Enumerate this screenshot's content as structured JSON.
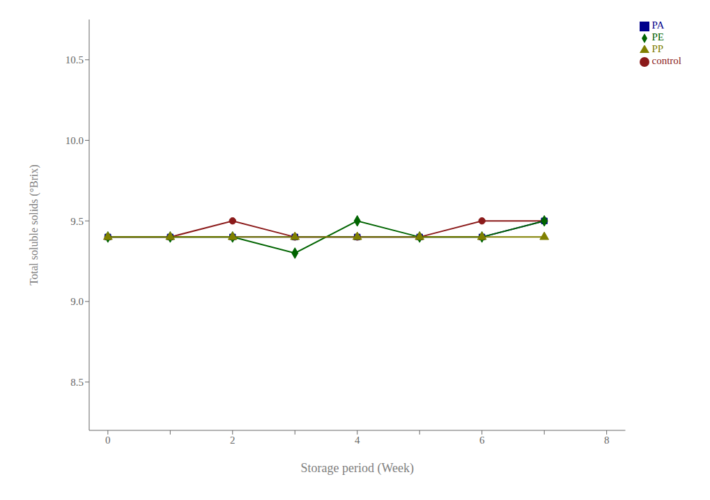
{
  "chart_data": {
    "type": "line",
    "xlabel": "Storage period (Week)",
    "ylabel": "Total soluble solids (°Brix)",
    "x": [
      0,
      1,
      2,
      3,
      4,
      5,
      6,
      7
    ],
    "series": [
      {
        "name": "control",
        "color": "#8B1A1A",
        "marker": "circle",
        "values": [
          9.4,
          9.4,
          9.5,
          9.4,
          9.4,
          9.4,
          9.5,
          9.5
        ]
      },
      {
        "name": "PA",
        "color": "#00008B",
        "marker": "square",
        "values": [
          9.4,
          9.4,
          9.4,
          9.4,
          9.4,
          9.4,
          9.4,
          9.5
        ]
      },
      {
        "name": "PE",
        "color": "#006400",
        "marker": "diamond",
        "values": [
          9.4,
          9.4,
          9.4,
          9.3,
          9.5,
          9.4,
          9.4,
          9.5
        ]
      },
      {
        "name": "PP",
        "color": "#808000",
        "marker": "triangle",
        "values": [
          9.4,
          9.4,
          9.4,
          9.4,
          9.4,
          9.4,
          9.4,
          9.4
        ]
      }
    ],
    "xlim": [
      -0.3,
      8.3
    ],
    "ylim": [
      8.2,
      10.75
    ],
    "xticks": [
      0,
      {
        "value": 1,
        "label": ""
      },
      2,
      {
        "value": 3,
        "label": ""
      },
      4,
      {
        "value": 5,
        "label": ""
      },
      6,
      {
        "value": 7,
        "label": ""
      },
      8
    ],
    "yticks": [
      8.5,
      {
        "value": 9.0,
        "label": "9.0"
      },
      9.5,
      {
        "value": 10.0,
        "label": "10.0"
      },
      10.5
    ],
    "legend": "upper right",
    "grid": false
  }
}
